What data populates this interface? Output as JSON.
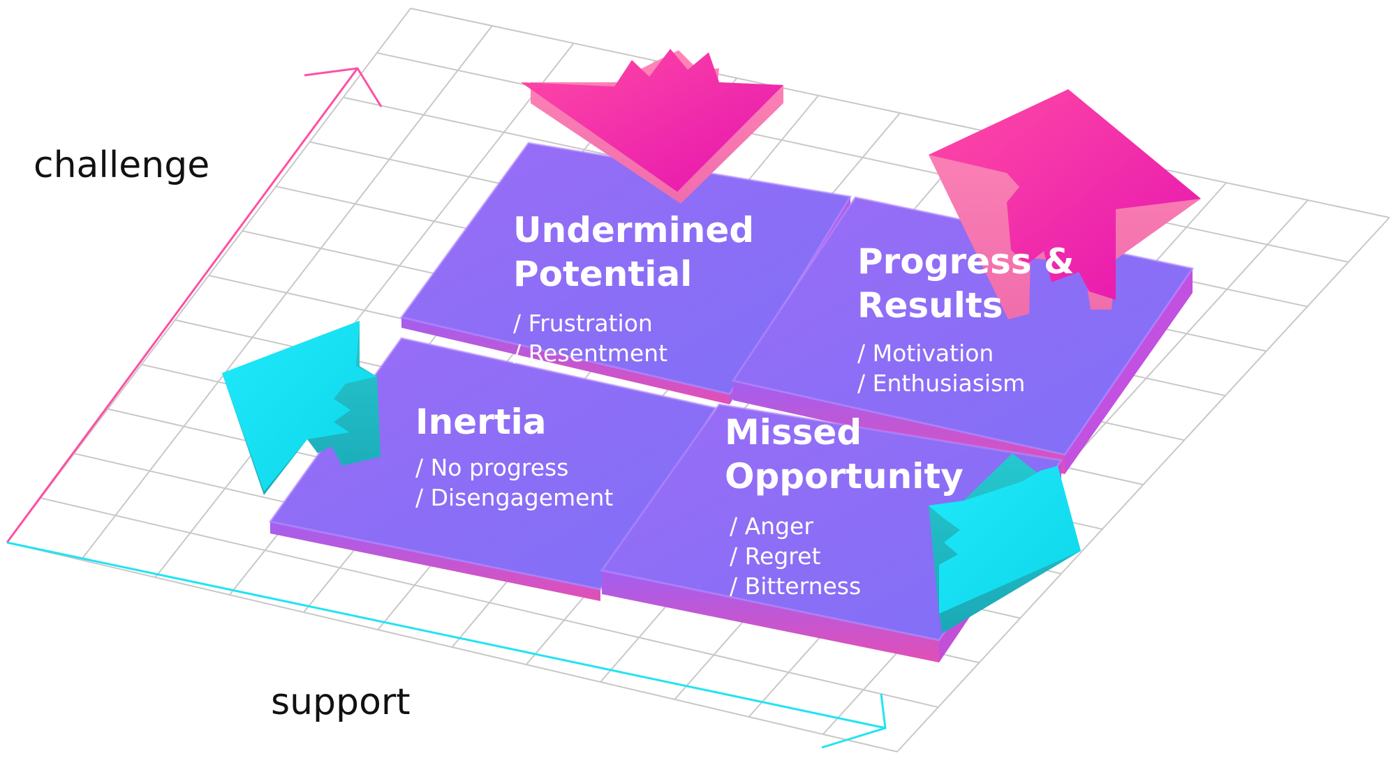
{
  "axes": {
    "y_label": "challenge",
    "x_label": "support",
    "y_axis_color": "#ff4fa3",
    "x_axis_color": "#22e3f2"
  },
  "colors": {
    "tile_top": "#8a6ef7",
    "tile_side": "#c04fd8",
    "tile_edge": "#ff5fb0",
    "arrow_pink": "#f21ea5",
    "arrow_cyan": "#15e6f2",
    "grid": "#c8c8c8"
  },
  "quadrants": {
    "top_left": {
      "title_line1": "Undermined",
      "title_line2": "Potential",
      "items": [
        "/ Frustration",
        "/ Resentment"
      ]
    },
    "top_right": {
      "title_line1": "Progress &",
      "title_line2": "Results",
      "items": [
        "/ Motivation",
        "/ Enthusiasism"
      ]
    },
    "bottom_left": {
      "title_line1": "Inertia",
      "items": [
        "/ No progress",
        "/ Disengagement"
      ]
    },
    "bottom_right": {
      "title_line1": "Missed",
      "title_line2": "Opportunity",
      "items": [
        "/ Anger",
        "/ Regret",
        "/ Bitterness"
      ]
    }
  },
  "arrows": {
    "top_left": "down-arrow-icon",
    "top_right": "up-arrow-icon",
    "bottom_left": "left-arrow-icon",
    "bottom_right": "right-arrow-icon"
  }
}
